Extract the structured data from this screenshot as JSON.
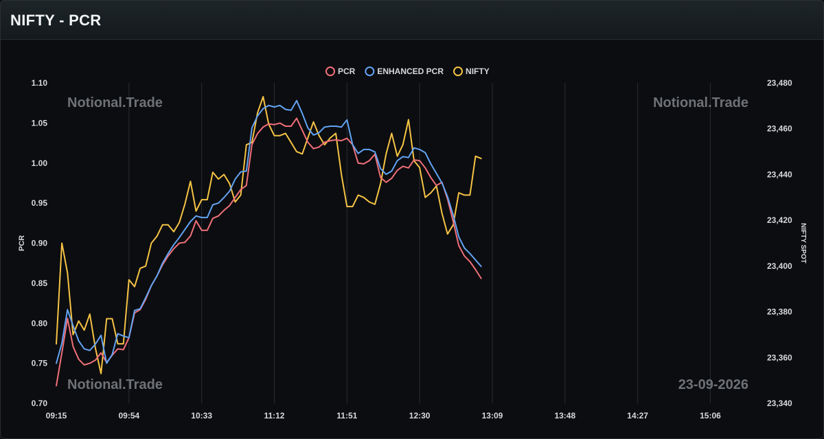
{
  "header": {
    "title": "NIFTY - PCR"
  },
  "watermarks": {
    "top_left": "Notional.Trade",
    "top_right": "Notional.Trade",
    "bottom_left": "Notional.Trade",
    "bottom_right": "23-09-2026"
  },
  "colors": {
    "pcr": "#f1707a",
    "enhanced_pcr": "#63a4f4",
    "nifty": "#f6c445",
    "axis_text": "#d6d9dc",
    "grid": "#2a2d31",
    "watermark": "#6e7276"
  },
  "chart_data": {
    "type": "line",
    "title": "",
    "xlabel": "",
    "ylabel": "PCR",
    "y2label": "NIFTY SPOT",
    "legend": [
      "PCR",
      "ENHANCED PCR",
      "NIFTY"
    ],
    "legend_position": "top-center",
    "grid": "vertical",
    "x_ticks": [
      "09:15",
      "09:54",
      "10:33",
      "11:12",
      "11:51",
      "12:30",
      "13:09",
      "13:48",
      "14:27",
      "15:06"
    ],
    "x_range_minutes": [
      0,
      377
    ],
    "ylim": [
      0.7,
      1.1
    ],
    "y_ticks": [
      "0.70",
      "0.75",
      "0.80",
      "0.85",
      "0.90",
      "0.95",
      "1.00",
      "1.05",
      "1.10"
    ],
    "y2lim": [
      23340,
      23480
    ],
    "y2_ticks": [
      "23,340",
      "23,360",
      "23,380",
      "23,400",
      "23,420",
      "23,440",
      "23,460",
      "23,480"
    ],
    "x_interval_minutes": 3,
    "series": [
      {
        "name": "PCR",
        "axis": "left",
        "values": [
          0.722,
          0.763,
          0.806,
          0.771,
          0.755,
          0.748,
          0.75,
          0.754,
          0.763,
          0.751,
          0.76,
          0.768,
          0.767,
          0.782,
          0.813,
          0.817,
          0.83,
          0.847,
          0.859,
          0.873,
          0.884,
          0.893,
          0.9,
          0.901,
          0.909,
          0.928,
          0.916,
          0.916,
          0.931,
          0.934,
          0.941,
          0.947,
          0.957,
          0.967,
          0.972,
          1.023,
          1.037,
          1.045,
          1.049,
          1.048,
          1.05,
          1.046,
          1.046,
          1.056,
          1.041,
          1.026,
          1.018,
          1.02,
          1.026,
          1.028,
          1.029,
          1.028,
          1.031,
          1.023,
          1.0,
          0.999,
          1.003,
          1.011,
          0.982,
          0.976,
          0.981,
          0.991,
          0.996,
          0.994,
          1.004,
          1.003,
          0.994,
          0.982,
          0.972,
          0.976,
          0.955,
          0.927,
          0.897,
          0.884,
          0.877,
          0.867,
          0.856
        ]
      },
      {
        "name": "ENHANCED PCR",
        "axis": "left",
        "values": [
          0.75,
          0.775,
          0.817,
          0.797,
          0.778,
          0.768,
          0.766,
          0.774,
          0.785,
          0.75,
          0.761,
          0.787,
          0.784,
          0.782,
          0.816,
          0.818,
          0.832,
          0.847,
          0.859,
          0.875,
          0.887,
          0.898,
          0.907,
          0.917,
          0.927,
          0.934,
          0.932,
          0.932,
          0.948,
          0.95,
          0.957,
          0.965,
          0.98,
          0.989,
          0.99,
          1.044,
          1.059,
          1.068,
          1.072,
          1.07,
          1.072,
          1.067,
          1.066,
          1.078,
          1.062,
          1.044,
          1.035,
          1.038,
          1.045,
          1.046,
          1.046,
          1.045,
          1.054,
          1.023,
          1.012,
          1.017,
          1.017,
          1.014,
          0.993,
          0.986,
          0.99,
          1.003,
          1.008,
          1.007,
          1.019,
          1.017,
          1.013,
          0.999,
          0.987,
          0.975,
          0.958,
          0.935,
          0.908,
          0.894,
          0.887,
          0.879,
          0.871
        ]
      },
      {
        "name": "NIFTY",
        "axis": "right",
        "values": [
          23366,
          23410,
          23397,
          23370,
          23376,
          23372,
          23379,
          23364,
          23353,
          23377,
          23377,
          23366,
          23366,
          23394,
          23391,
          23399,
          23400,
          23410,
          23413,
          23418,
          23418,
          23415,
          23419,
          23427,
          23437,
          23424,
          23429,
          23429,
          23441,
          23438,
          23440,
          23436,
          23428,
          23431,
          23453,
          23454,
          23467,
          23474,
          23462,
          23457,
          23457,
          23458,
          23454,
          23450,
          23449,
          23456,
          23463,
          23457,
          23453,
          23456,
          23458,
          23440,
          23426,
          23426,
          23431,
          23430,
          23428,
          23427,
          23436,
          23449,
          23458,
          23448,
          23453,
          23464,
          23446,
          23443,
          23430,
          23432,
          23435,
          23423,
          23414,
          23418,
          23432,
          23431,
          23431,
          23448,
          23447
        ]
      }
    ]
  }
}
